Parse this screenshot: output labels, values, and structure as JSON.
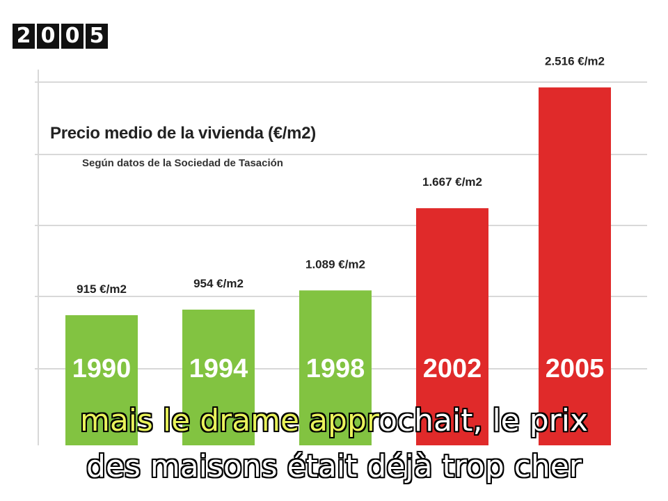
{
  "badge": {
    "digits": [
      "2",
      "0",
      "0",
      "5"
    ]
  },
  "colors": {
    "green": "#82c341",
    "red": "#e02a2a",
    "grid": "#d8d8d8"
  },
  "chart_data": {
    "type": "bar",
    "title": "Precio medio de la vivienda (€/m2)",
    "subtitle": "Según datos de la Sociedad de Tasación",
    "categories": [
      "1990",
      "1994",
      "1998",
      "2002",
      "2005"
    ],
    "values": [
      915,
      954,
      1089,
      1667,
      2516
    ],
    "data_labels": [
      "915 €/m2",
      "954 €/m2",
      "1.089 €/m2",
      "1.667 €/m2",
      "2.516 €/m2"
    ],
    "bar_colors": [
      "#82c341",
      "#82c341",
      "#82c341",
      "#e02a2a",
      "#e02a2a"
    ],
    "ylim": [
      0,
      2700
    ],
    "grid": true
  },
  "subtitles": {
    "line1_hl": "mais le drame appr",
    "line1_rest": "ochait, le prix",
    "line2": "des maisons était déjà trop cher"
  }
}
